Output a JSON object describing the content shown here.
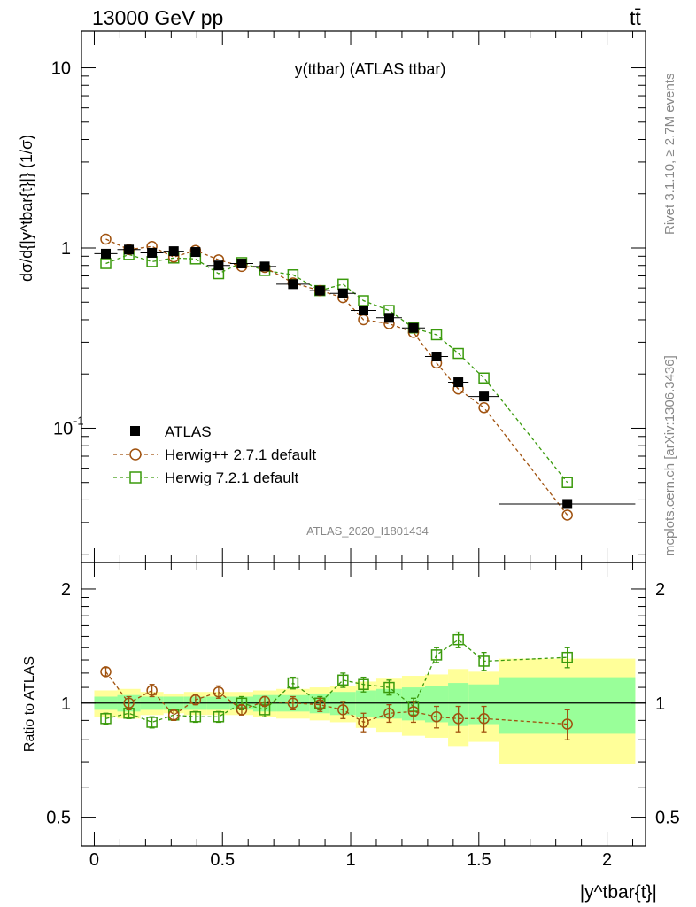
{
  "header": {
    "left_label": "13000 GeV pp",
    "right_label": "tt̄",
    "plot_title": "y(ttbar) (ATLAS ttbar)",
    "ylabel_main": "dσ/d{|y^tbar{t}|} (1/σ)",
    "ylabel_ratio": "Ratio to ATLAS",
    "xlabel": "|y^tbar{t}|",
    "watermark": "ATLAS_2020_I1801434",
    "side_text_top": "Rivet 3.1.10, ≥ 2.7M events",
    "side_text_bottom": "mcplots.cern.ch [arXiv:1306.3436]"
  },
  "legend": [
    {
      "label": "ATLAS",
      "style": "square-filled",
      "color": "#000000"
    },
    {
      "label": "Herwig++ 2.7.1 default",
      "style": "circle-open-dashed",
      "color": "#a0520f"
    },
    {
      "label": "Herwig 7.2.1 default",
      "style": "square-open-dashed",
      "color": "#3a9a0c"
    }
  ],
  "colors": {
    "band_outer": "#ffff99",
    "band_inner": "#99ff99",
    "herwigpp": "#a0520f",
    "herwig7": "#3a9a0c",
    "data": "#000000"
  },
  "chart_data": [
    {
      "type": "scatter",
      "panel": "main",
      "title": "y(ttbar) (ATLAS ttbar)",
      "xlabel": "",
      "ylabel": "dσ/d{|y^tbar{t}|} (1/σ)",
      "xlim": [
        -0.05,
        2.15
      ],
      "ylim": [
        0.018,
        16
      ],
      "yscale": "log",
      "yticks": [
        0.1,
        1,
        10
      ],
      "ytick_labels": [
        "10^-1",
        "1",
        "10"
      ],
      "x": [
        0.045,
        0.135,
        0.225,
        0.31,
        0.395,
        0.485,
        0.575,
        0.665,
        0.775,
        0.88,
        0.97,
        1.05,
        1.15,
        1.245,
        1.335,
        1.42,
        1.52,
        1.845
      ],
      "xerr": [
        0.045,
        0.045,
        0.045,
        0.04,
        0.045,
        0.045,
        0.045,
        0.045,
        0.065,
        0.04,
        0.05,
        0.05,
        0.05,
        0.045,
        0.045,
        0.04,
        0.06,
        0.265
      ],
      "series": [
        {
          "name": "ATLAS",
          "values": [
            0.93,
            0.98,
            0.94,
            0.96,
            0.95,
            0.8,
            0.82,
            0.79,
            0.63,
            0.58,
            0.56,
            0.45,
            0.41,
            0.36,
            0.25,
            0.18,
            0.15,
            0.038
          ]
        },
        {
          "name": "Herwig++ 2.7.1 default",
          "values": [
            1.12,
            0.98,
            1.02,
            0.89,
            0.97,
            0.86,
            0.79,
            0.78,
            0.64,
            0.58,
            0.53,
            0.4,
            0.38,
            0.34,
            0.23,
            0.165,
            0.13,
            0.033
          ]
        },
        {
          "name": "Herwig 7.2.1 default",
          "values": [
            0.82,
            0.92,
            0.84,
            0.88,
            0.87,
            0.72,
            0.83,
            0.75,
            0.71,
            0.58,
            0.63,
            0.51,
            0.45,
            0.36,
            0.33,
            0.26,
            0.19,
            0.05
          ]
        }
      ]
    },
    {
      "type": "scatter",
      "panel": "ratio",
      "xlabel": "|y^tbar{t}|",
      "ylabel": "Ratio to ATLAS",
      "xlim": [
        -0.05,
        2.15
      ],
      "ylim": [
        0.42,
        2.35
      ],
      "yscale": "log",
      "yticks": [
        0.5,
        1,
        2
      ],
      "xticks": [
        0,
        0.5,
        1,
        1.5,
        2
      ],
      "x": [
        0.045,
        0.135,
        0.225,
        0.31,
        0.395,
        0.485,
        0.575,
        0.665,
        0.775,
        0.88,
        0.97,
        1.05,
        1.15,
        1.245,
        1.335,
        1.42,
        1.52,
        1.845
      ],
      "bin_edges": [
        0,
        0.09,
        0.18,
        0.27,
        0.35,
        0.44,
        0.53,
        0.62,
        0.71,
        0.84,
        0.92,
        1.02,
        1.1,
        1.2,
        1.29,
        1.38,
        1.46,
        1.58,
        2.11
      ],
      "band_outer": [
        0.08,
        0.09,
        0.07,
        0.06,
        0.07,
        0.07,
        0.07,
        0.08,
        0.09,
        0.1,
        0.11,
        0.14,
        0.16,
        0.18,
        0.19,
        0.23,
        0.21,
        0.31
      ],
      "band_inner": [
        0.04,
        0.05,
        0.04,
        0.04,
        0.04,
        0.04,
        0.04,
        0.05,
        0.05,
        0.06,
        0.07,
        0.08,
        0.09,
        0.1,
        0.11,
        0.13,
        0.12,
        0.17
      ],
      "series": [
        {
          "name": "Herwig++ 2.7.1 default",
          "values": [
            1.21,
            1.0,
            1.08,
            0.93,
            1.02,
            1.07,
            0.96,
            1.01,
            1.0,
            0.99,
            0.96,
            0.89,
            0.94,
            0.95,
            0.92,
            0.91,
            0.91,
            0.88
          ],
          "errors": [
            0.03,
            0.04,
            0.04,
            0.03,
            0.03,
            0.04,
            0.03,
            0.03,
            0.04,
            0.04,
            0.05,
            0.05,
            0.05,
            0.06,
            0.06,
            0.07,
            0.07,
            0.08
          ]
        },
        {
          "name": "Herwig 7.2.1 default",
          "values": [
            0.91,
            0.94,
            0.89,
            0.93,
            0.92,
            0.92,
            1.0,
            0.96,
            1.13,
            1.0,
            1.15,
            1.12,
            1.1,
            0.98,
            1.34,
            1.47,
            1.29,
            1.32
          ],
          "errors": [
            0.03,
            0.03,
            0.03,
            0.03,
            0.03,
            0.03,
            0.04,
            0.04,
            0.04,
            0.04,
            0.05,
            0.05,
            0.05,
            0.05,
            0.06,
            0.07,
            0.07,
            0.08
          ]
        }
      ]
    }
  ]
}
